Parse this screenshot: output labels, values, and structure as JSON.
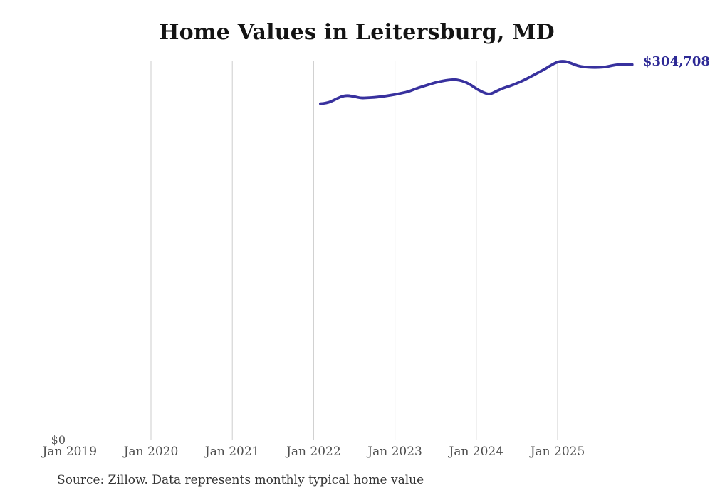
{
  "header": {
    "title": "Home Values in Leitersburg, MD"
  },
  "axes": {
    "zero_label": "$0",
    "x_labels": [
      "Jan 2019",
      "Jan 2020",
      "Jan 2021",
      "Jan 2022",
      "Jan 2023",
      "Jan 2024",
      "Jan 2025"
    ]
  },
  "annotation": {
    "value": "$304,708"
  },
  "footer": {
    "source": "Source: Zillow. Data represents monthly typical home value"
  },
  "colors": {
    "line": "#38319e",
    "annotation_text": "#2e2a96",
    "gridline": "#cccccc",
    "axis_text": "#4f4f4f",
    "title_text": "#141414",
    "source_text": "#333333",
    "background": "#ffffff"
  },
  "chart_data": {
    "type": "line",
    "title": "Home Values in Leitersburg, MD",
    "series_name": "Monthly typical home value (Zillow)",
    "x": [
      "2022-02",
      "2022-03",
      "2022-04",
      "2022-05",
      "2022-06",
      "2022-07",
      "2022-08",
      "2022-09",
      "2022-10",
      "2022-11",
      "2022-12",
      "2023-01",
      "2023-02",
      "2023-03",
      "2023-04",
      "2023-05",
      "2023-06",
      "2023-07",
      "2023-08",
      "2023-09",
      "2023-10",
      "2023-11",
      "2023-12",
      "2024-01",
      "2024-02",
      "2024-03",
      "2024-04",
      "2024-05",
      "2024-06",
      "2024-07",
      "2024-08",
      "2024-09",
      "2024-10",
      "2024-11",
      "2024-12",
      "2025-01",
      "2025-02",
      "2025-03",
      "2025-04",
      "2025-05",
      "2025-06",
      "2025-07",
      "2025-08",
      "2025-09",
      "2025-10",
      "2025-11",
      "2025-12"
    ],
    "values": [
      272900,
      273500,
      275800,
      278700,
      279800,
      278700,
      277500,
      277800,
      278100,
      278700,
      279500,
      280400,
      281600,
      282700,
      285000,
      286800,
      288500,
      290300,
      291400,
      292300,
      292600,
      291400,
      289100,
      285100,
      282100,
      280400,
      283300,
      285700,
      287400,
      289700,
      292000,
      294900,
      297800,
      300700,
      304100,
      307000,
      307600,
      305900,
      303600,
      302700,
      302400,
      302400,
      302700,
      303900,
      304800,
      305000,
      304708
    ],
    "last_value_label": "$304,708",
    "xlabel": "",
    "ylabel": "",
    "ylim": [
      0,
      308000
    ],
    "x_tick_labels": [
      "Jan 2019",
      "Jan 2020",
      "Jan 2021",
      "Jan 2022",
      "Jan 2023",
      "Jan 2024",
      "Jan 2025"
    ],
    "y_tick_labels": [
      "$0"
    ],
    "grid": "vertical gridlines at each January, 2020 through 2025",
    "legend": "none"
  }
}
